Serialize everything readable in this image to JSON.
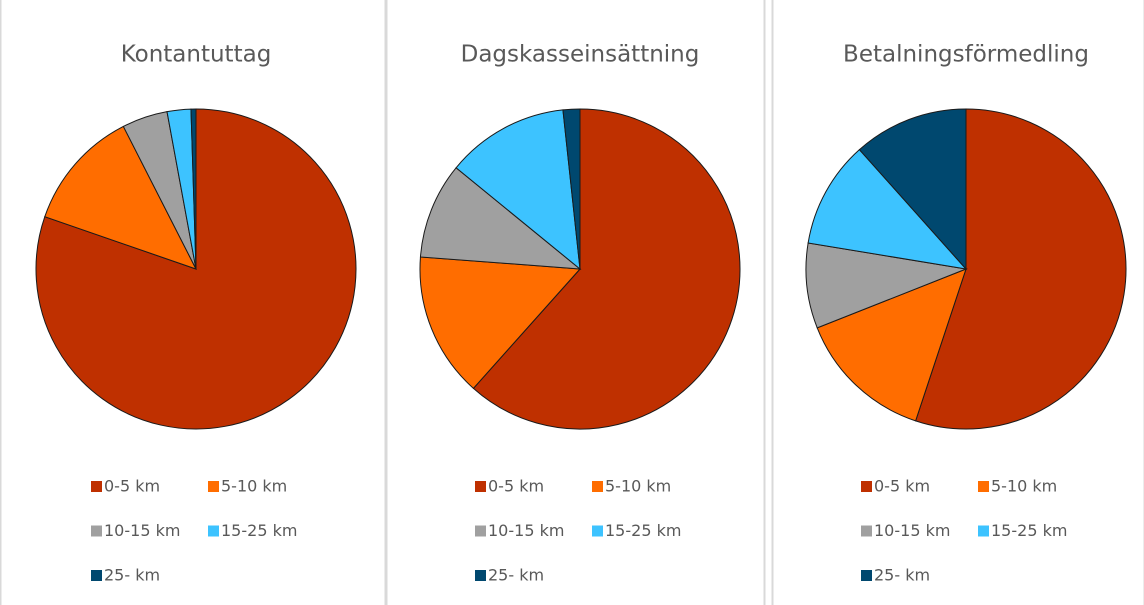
{
  "chart_data": [
    {
      "type": "pie",
      "title": "Kontantuttag",
      "categories": [
        "0-5 km",
        "5-10 km",
        "10-15 km",
        "15-25 km",
        "25- km"
      ],
      "values": [
        80.3,
        12.2,
        4.6,
        2.4,
        0.5
      ],
      "colors": [
        "#bf3000",
        "#ff6d00",
        "#a0a0a0",
        "#3dc3ff",
        "#00486f"
      ]
    },
    {
      "type": "pie",
      "title": "Dagskasseinsättning",
      "categories": [
        "0-5 km",
        "5-10 km",
        "10-15 km",
        "15-25 km",
        "25- km"
      ],
      "values": [
        61.6,
        14.6,
        9.7,
        12.4,
        1.7
      ],
      "colors": [
        "#bf3000",
        "#ff6d00",
        "#a0a0a0",
        "#3dc3ff",
        "#00486f"
      ]
    },
    {
      "type": "pie",
      "title": "Betalningsförmedling",
      "categories": [
        "0-5 km",
        "5-10 km",
        "10-15 km",
        "15-25 km",
        "25- km"
      ],
      "values": [
        55.1,
        13.9,
        8.6,
        10.8,
        11.6
      ],
      "colors": [
        "#bf3000",
        "#ff6d00",
        "#a0a0a0",
        "#3dc3ff",
        "#00486f"
      ]
    }
  ]
}
